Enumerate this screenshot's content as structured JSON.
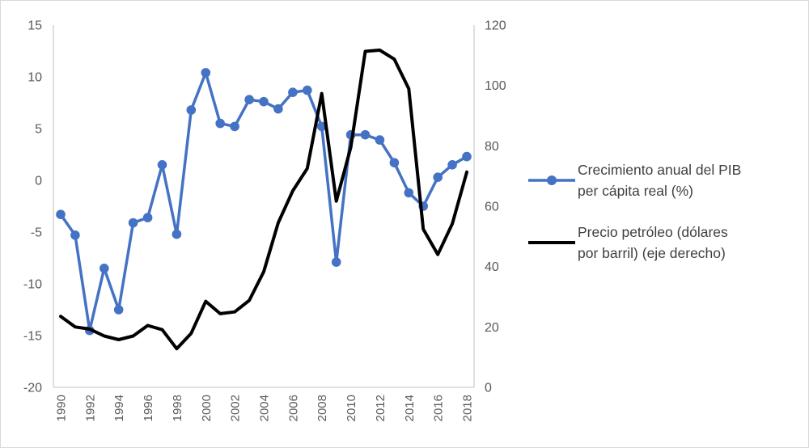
{
  "chart_data": {
    "type": "line",
    "title": "",
    "x": [
      1990,
      1991,
      1992,
      1993,
      1994,
      1995,
      1996,
      1997,
      1998,
      1999,
      2000,
      2001,
      2002,
      2003,
      2004,
      2005,
      2006,
      2007,
      2008,
      2009,
      2010,
      2011,
      2012,
      2013,
      2014,
      2015,
      2016,
      2017,
      2018
    ],
    "x_tick_labels": [
      "1990",
      "1992",
      "1994",
      "1996",
      "1998",
      "2000",
      "2002",
      "2004",
      "2006",
      "2008",
      "2010",
      "2012",
      "2014",
      "2016",
      "2018"
    ],
    "series": [
      {
        "name": "Crecimiento anual del PIB per cápita real (%)",
        "axis": "left",
        "color": "#4472C4",
        "marker": "circle",
        "values": [
          -3.3,
          -5.3,
          -14.5,
          -8.5,
          -12.5,
          -4.1,
          -3.6,
          1.5,
          -5.2,
          6.8,
          10.4,
          5.5,
          5.2,
          7.8,
          7.6,
          6.9,
          8.5,
          8.7,
          5.2,
          -7.9,
          4.4,
          4.4,
          3.9,
          1.7,
          -1.2,
          -2.5,
          0.3,
          1.5,
          2.3
        ]
      },
      {
        "name": "Precio petróleo (dólares por barril) (eje derecho)",
        "axis": "right",
        "color": "#000000",
        "marker": "none",
        "values": [
          23.5,
          20.0,
          19.3,
          17.0,
          15.8,
          17.0,
          20.5,
          19.1,
          12.8,
          17.9,
          28.5,
          24.4,
          25.0,
          28.8,
          38.3,
          54.5,
          65.1,
          72.5,
          97.3,
          61.7,
          79.5,
          111.3,
          111.7,
          108.7,
          98.9,
          52.4,
          44.0,
          54.2,
          71.3
        ]
      }
    ],
    "left_axis": {
      "min": -20,
      "max": 15,
      "ticks": [
        15,
        10,
        5,
        0,
        -5,
        -10,
        -15,
        -20
      ]
    },
    "right_axis": {
      "min": 0,
      "max": 120,
      "ticks": [
        120,
        100,
        80,
        60,
        40,
        20,
        0
      ]
    },
    "grid": false,
    "legend_position": "right"
  },
  "legend": {
    "item1_line1": "Crecimiento anual del PIB",
    "item1_line2": "per cápita real (%)",
    "item2_line1": "Precio petróleo (dólares",
    "item2_line2": "por barril) (eje derecho)"
  },
  "colors": {
    "gdp_series": "#4472C4",
    "oil_series": "#000000",
    "axis_text": "#595959",
    "axis_line": "#bfbfbf",
    "frame_border": "#d9d9d9"
  }
}
